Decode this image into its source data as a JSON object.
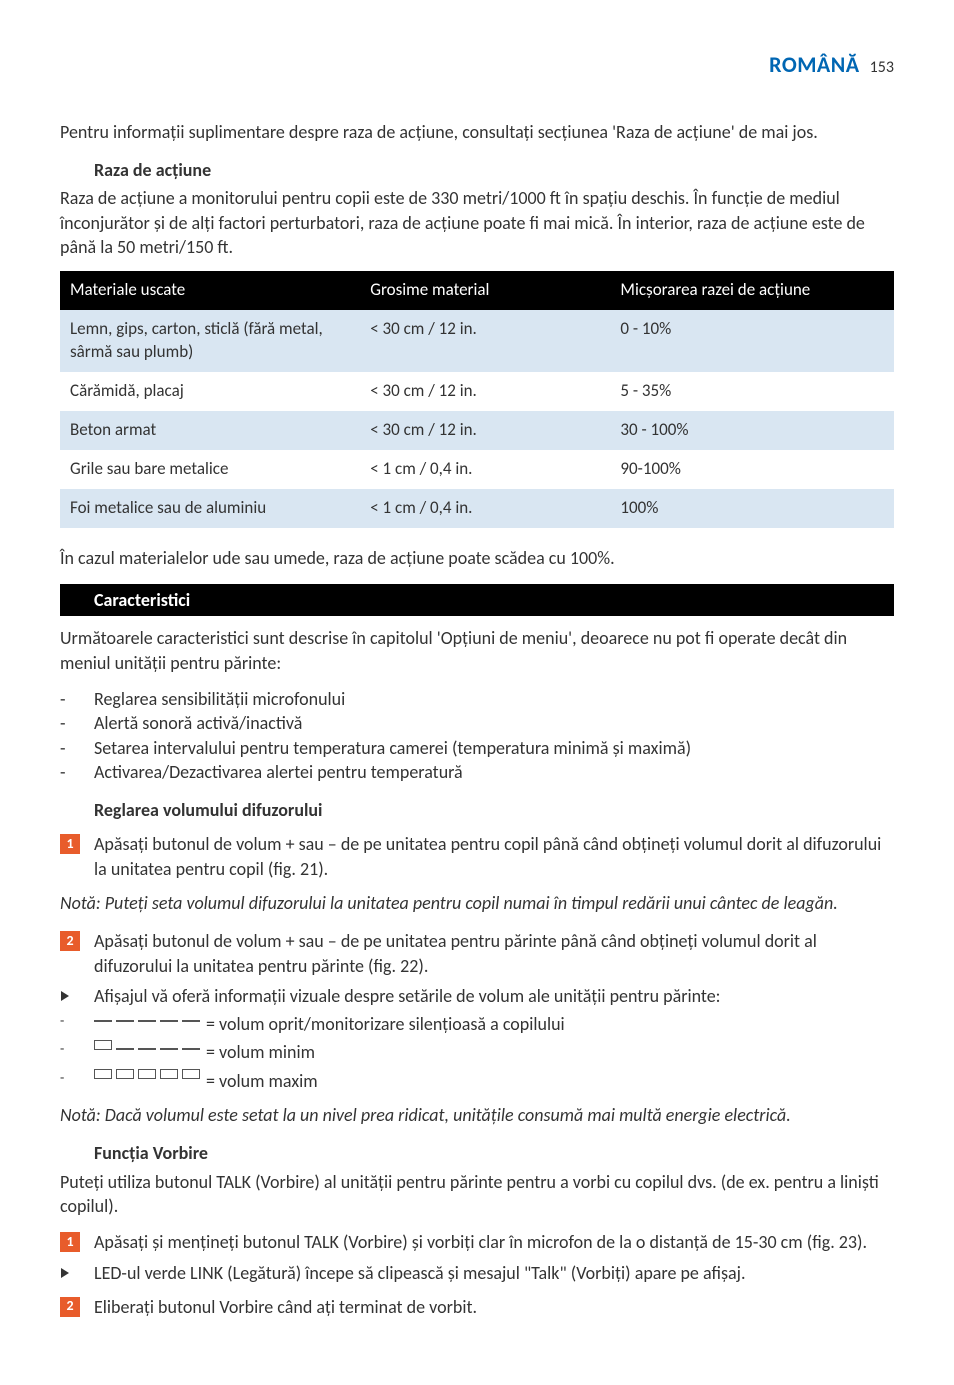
{
  "header": {
    "language": "ROMÂNĂ",
    "page_number": "153"
  },
  "intro_para": "Pentru informații suplimentare despre raza de acțiune, consultați secțiunea 'Raza de acțiune' de mai jos.",
  "range": {
    "heading": "Raza de acțiune",
    "para": "Raza de acțiune a monitorului pentru copii este de 330 metri/1000 ft în spațiu deschis. În funcție de mediul înconjurător și de alți factori perturbatori, raza de acțiune poate fi mai mică. În interior, raza de acțiune este de până la 50 metri/150 ft."
  },
  "table": {
    "headers": [
      "Materiale uscate",
      "Grosime material",
      "Micșorarea razei de acțiune"
    ],
    "rows": [
      [
        "Lemn, gips, carton, sticlă (fără metal, sârmă sau plumb)",
        "< 30 cm / 12 in.",
        "0 - 10%"
      ],
      [
        "Cărămidă, placaj",
        "< 30 cm / 12 in.",
        "5 - 35%"
      ],
      [
        "Beton armat",
        "< 30 cm / 12 in.",
        "30 - 100%"
      ],
      [
        "Grile sau bare metalice",
        "< 1 cm / 0,4 in.",
        "90-100%"
      ],
      [
        "Foi metalice sau de aluminiu",
        "< 1 cm / 0,4 in.",
        "100%"
      ]
    ]
  },
  "wet_note": "În cazul materialelor ude sau umede, raza de acțiune poate scădea cu 100%.",
  "features": {
    "bar": "Caracteristici",
    "intro": "Următoarele caracteristici sunt descrise în capitolul 'Opțiuni de meniu', deoarece nu pot fi operate decât din meniul unității pentru părinte:",
    "items": [
      "Reglarea sensibilității microfonului",
      "Alertă sonoră activă/inactivă",
      "Setarea intervalului pentru temperatura camerei (temperatura minimă și maximă)",
      "Activarea/Dezactivarea alertei pentru temperatură"
    ]
  },
  "volume": {
    "heading": "Reglarea volumului difuzorului",
    "step1": "Apăsați butonul de volum + sau – de pe unitatea pentru copil până când obțineți volumul dorit al difuzorului la unitatea pentru copil (fig. 21).",
    "note1": "Notă: Puteți seta volumul difuzorului la unitatea pentru copil numai în timpul redării unui cântec de leagăn.",
    "step2": "Apăsați butonul de volum + sau – de pe unitatea pentru părinte până când obțineți volumul dorit al difuzorului la unitatea pentru părinte (fig. 22).",
    "display_info": "Afișajul vă oferă informații vizuale despre setările de volum ale unității pentru părinte:",
    "levels": [
      {
        "filled": 0,
        "label": "= volum oprit/monitorizare silențioasă a copilului"
      },
      {
        "filled": 1,
        "label": "= volum minim"
      },
      {
        "filled": 5,
        "label": "= volum maxim"
      }
    ],
    "note2": "Notă: Dacă volumul este setat la un nivel prea ridicat, unitățile consumă mai multă energie electrică."
  },
  "talk": {
    "heading": "Funcția Vorbire",
    "intro": "Puteți utiliza butonul TALK (Vorbire) al unității pentru părinte pentru a vorbi cu copilul dvs. (de ex. pentru a liniști copilul).",
    "step1": "Apăsați și mențineți butonul TALK (Vorbire) și vorbiți clar în microfon de la o distanță de 15-30 cm (fig. 23).",
    "led": "LED-ul verde LINK (Legătură) începe să clipească și mesajul \"Talk\" (Vorbiți) apare pe afișaj.",
    "step2": "Eliberați butonul Vorbire când ați terminat de vorbit."
  },
  "colors": {
    "accent": "#0066b3",
    "orange": "#e85c2b",
    "table_row_alt": "#d9e6f2"
  }
}
